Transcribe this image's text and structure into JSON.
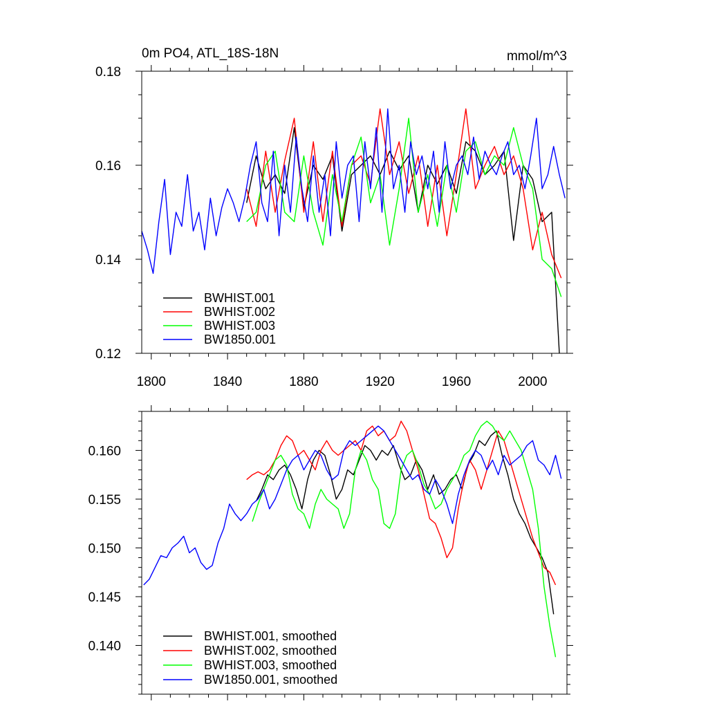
{
  "chart_data": [
    {
      "type": "line",
      "title": "0m PO4, ATL_18S-18N",
      "units": "mmol/m^3",
      "xlim": [
        1795,
        2018
      ],
      "ylim": [
        0.12,
        0.18
      ],
      "x_ticks": [
        1800,
        1840,
        1880,
        1920,
        1960,
        2000
      ],
      "x_tick_labels": [
        "1800",
        "1840",
        "1880",
        "1920",
        "1960",
        "2000"
      ],
      "y_ticks": [
        0.12,
        0.14,
        0.16,
        0.18
      ],
      "y_tick_labels": [
        "0.12",
        "0.14",
        "0.16",
        "0.18"
      ],
      "legend_position": "bottom-left",
      "series": [
        {
          "name": "BWHIST.001",
          "color": "#000000",
          "x": [
            1850,
            1855,
            1860,
            1865,
            1870,
            1875,
            1880,
            1885,
            1890,
            1895,
            1900,
            1905,
            1910,
            1915,
            1920,
            1925,
            1930,
            1935,
            1940,
            1945,
            1950,
            1955,
            1960,
            1965,
            1970,
            1975,
            1980,
            1985,
            1990,
            1995,
            2000,
            2005,
            2010,
            2014
          ],
          "y": [
            0.152,
            0.162,
            0.155,
            0.158,
            0.154,
            0.168,
            0.151,
            0.16,
            0.157,
            0.162,
            0.146,
            0.158,
            0.16,
            0.162,
            0.158,
            0.163,
            0.159,
            0.162,
            0.15,
            0.16,
            0.156,
            0.16,
            0.154,
            0.165,
            0.163,
            0.158,
            0.16,
            0.163,
            0.144,
            0.16,
            0.157,
            0.148,
            0.15,
            0.12
          ]
        },
        {
          "name": "BWHIST.002",
          "color": "#ff0000",
          "x": [
            1850,
            1855,
            1860,
            1865,
            1870,
            1875,
            1880,
            1885,
            1890,
            1895,
            1900,
            1905,
            1910,
            1915,
            1920,
            1925,
            1930,
            1935,
            1940,
            1945,
            1950,
            1955,
            1960,
            1965,
            1970,
            1975,
            1980,
            1985,
            1990,
            1995,
            2000,
            2005,
            2010,
            2015
          ],
          "y": [
            0.155,
            0.147,
            0.163,
            0.15,
            0.161,
            0.17,
            0.15,
            0.165,
            0.148,
            0.163,
            0.147,
            0.16,
            0.162,
            0.156,
            0.172,
            0.158,
            0.165,
            0.154,
            0.162,
            0.147,
            0.16,
            0.145,
            0.158,
            0.172,
            0.155,
            0.16,
            0.164,
            0.158,
            0.162,
            0.155,
            0.142,
            0.15,
            0.141,
            0.136
          ]
        },
        {
          "name": "BWHIST.003",
          "color": "#00ff00",
          "x": [
            1850,
            1855,
            1860,
            1865,
            1870,
            1875,
            1880,
            1885,
            1890,
            1895,
            1900,
            1905,
            1910,
            1915,
            1920,
            1925,
            1930,
            1935,
            1940,
            1945,
            1950,
            1955,
            1960,
            1965,
            1970,
            1975,
            1980,
            1985,
            1990,
            1995,
            2000,
            2005,
            2010,
            2015
          ],
          "y": [
            0.148,
            0.15,
            0.16,
            0.163,
            0.15,
            0.148,
            0.162,
            0.15,
            0.143,
            0.158,
            0.148,
            0.16,
            0.166,
            0.152,
            0.158,
            0.143,
            0.155,
            0.17,
            0.15,
            0.158,
            0.147,
            0.16,
            0.15,
            0.163,
            0.165,
            0.158,
            0.162,
            0.16,
            0.168,
            0.16,
            0.155,
            0.14,
            0.138,
            0.132
          ]
        },
        {
          "name": "BW1850.001",
          "color": "#0000ff",
          "x": [
            1795,
            1798,
            1801,
            1804,
            1807,
            1810,
            1813,
            1816,
            1819,
            1822,
            1825,
            1828,
            1831,
            1834,
            1837,
            1840,
            1843,
            1846,
            1849,
            1852,
            1855,
            1858,
            1861,
            1864,
            1867,
            1870,
            1873,
            1876,
            1879,
            1882,
            1885,
            1888,
            1891,
            1894,
            1897,
            1900,
            1903,
            1906,
            1909,
            1912,
            1915,
            1918,
            1921,
            1924,
            1927,
            1930,
            1933,
            1936,
            1939,
            1942,
            1945,
            1948,
            1951,
            1954,
            1957,
            1960,
            1963,
            1966,
            1969,
            1972,
            1975,
            1978,
            1981,
            1984,
            1987,
            1990,
            1993,
            1996,
            1999,
            2002,
            2005,
            2008,
            2011,
            2014,
            2017
          ],
          "y": [
            0.146,
            0.142,
            0.137,
            0.148,
            0.157,
            0.141,
            0.15,
            0.147,
            0.158,
            0.146,
            0.15,
            0.142,
            0.153,
            0.145,
            0.151,
            0.155,
            0.152,
            0.148,
            0.153,
            0.16,
            0.165,
            0.152,
            0.148,
            0.163,
            0.145,
            0.16,
            0.15,
            0.166,
            0.155,
            0.148,
            0.162,
            0.15,
            0.158,
            0.145,
            0.165,
            0.153,
            0.16,
            0.162,
            0.148,
            0.165,
            0.155,
            0.168,
            0.15,
            0.172,
            0.155,
            0.16,
            0.15,
            0.165,
            0.158,
            0.162,
            0.155,
            0.163,
            0.15,
            0.165,
            0.155,
            0.16,
            0.162,
            0.158,
            0.166,
            0.157,
            0.163,
            0.16,
            0.158,
            0.162,
            0.165,
            0.158,
            0.16,
            0.155,
            0.162,
            0.17,
            0.155,
            0.158,
            0.164,
            0.158,
            0.153
          ]
        }
      ]
    },
    {
      "type": "line",
      "xlim": [
        1795,
        2018
      ],
      "ylim": [
        0.135,
        0.164
      ],
      "x_ticks": [
        1800,
        1840,
        1880,
        1920,
        1960,
        2000
      ],
      "y_ticks": [
        0.14,
        0.145,
        0.15,
        0.155,
        0.16
      ],
      "y_tick_labels": [
        "0.140",
        "0.145",
        "0.150",
        "0.155",
        "0.160"
      ],
      "legend_position": "bottom-left",
      "series": [
        {
          "name": "BWHIST.001, smoothed",
          "color": "#000000",
          "x": [
            1855,
            1858,
            1861,
            1864,
            1867,
            1870,
            1873,
            1876,
            1879,
            1882,
            1885,
            1888,
            1891,
            1894,
            1897,
            1900,
            1903,
            1906,
            1909,
            1912,
            1915,
            1918,
            1921,
            1924,
            1927,
            1930,
            1933,
            1936,
            1939,
            1942,
            1945,
            1948,
            1951,
            1954,
            1957,
            1960,
            1963,
            1966,
            1969,
            1972,
            1975,
            1978,
            1981,
            1984,
            1987,
            1990,
            1993,
            1996,
            1999,
            2002,
            2005,
            2008,
            2011
          ],
          "y": [
            0.1548,
            0.156,
            0.1575,
            0.157,
            0.158,
            0.1585,
            0.1575,
            0.156,
            0.154,
            0.157,
            0.159,
            0.16,
            0.1595,
            0.1575,
            0.155,
            0.156,
            0.158,
            0.1575,
            0.159,
            0.1605,
            0.16,
            0.159,
            0.16,
            0.1595,
            0.1605,
            0.1585,
            0.157,
            0.1575,
            0.159,
            0.158,
            0.156,
            0.1575,
            0.1555,
            0.156,
            0.157,
            0.1575,
            0.156,
            0.1585,
            0.1595,
            0.161,
            0.1605,
            0.1615,
            0.162,
            0.1595,
            0.1575,
            0.155,
            0.1535,
            0.1525,
            0.151,
            0.15,
            0.149,
            0.1475,
            0.1432
          ]
        },
        {
          "name": "BWHIST.002, smoothed",
          "color": "#ff0000",
          "x": [
            1850,
            1853,
            1856,
            1859,
            1862,
            1865,
            1868,
            1871,
            1874,
            1877,
            1880,
            1883,
            1886,
            1889,
            1892,
            1895,
            1898,
            1901,
            1904,
            1907,
            1910,
            1913,
            1916,
            1919,
            1922,
            1925,
            1928,
            1931,
            1934,
            1937,
            1940,
            1943,
            1946,
            1949,
            1952,
            1955,
            1958,
            1961,
            1964,
            1967,
            1970,
            1973,
            1976,
            1979,
            1982,
            1985,
            1988,
            1991,
            1994,
            1997,
            2000,
            2003,
            2006,
            2009,
            2012
          ],
          "y": [
            0.157,
            0.1575,
            0.1578,
            0.1575,
            0.158,
            0.159,
            0.1605,
            0.1615,
            0.161,
            0.1595,
            0.16,
            0.159,
            0.158,
            0.16,
            0.161,
            0.16,
            0.1595,
            0.16,
            0.1605,
            0.161,
            0.16,
            0.162,
            0.1625,
            0.1615,
            0.162,
            0.161,
            0.1615,
            0.163,
            0.162,
            0.16,
            0.158,
            0.1555,
            0.153,
            0.1525,
            0.151,
            0.149,
            0.15,
            0.154,
            0.157,
            0.159,
            0.158,
            0.156,
            0.158,
            0.16,
            0.162,
            0.161,
            0.159,
            0.157,
            0.155,
            0.153,
            0.151,
            0.1495,
            0.148,
            0.1475,
            0.1462
          ]
        },
        {
          "name": "BWHIST.003, smoothed",
          "color": "#00ff00",
          "x": [
            1853,
            1856,
            1859,
            1862,
            1865,
            1868,
            1871,
            1874,
            1877,
            1880,
            1883,
            1886,
            1889,
            1892,
            1895,
            1898,
            1901,
            1904,
            1907,
            1910,
            1913,
            1916,
            1919,
            1922,
            1925,
            1928,
            1931,
            1934,
            1937,
            1940,
            1943,
            1946,
            1949,
            1952,
            1955,
            1958,
            1961,
            1964,
            1967,
            1970,
            1973,
            1976,
            1979,
            1982,
            1985,
            1988,
            1991,
            1994,
            1997,
            2000,
            2003,
            2006,
            2009,
            2012
          ],
          "y": [
            0.1527,
            0.1545,
            0.156,
            0.1575,
            0.159,
            0.1595,
            0.1585,
            0.1555,
            0.154,
            0.1535,
            0.152,
            0.1545,
            0.156,
            0.155,
            0.1545,
            0.154,
            0.152,
            0.1535,
            0.158,
            0.16,
            0.159,
            0.157,
            0.156,
            0.1525,
            0.152,
            0.1535,
            0.158,
            0.1595,
            0.16,
            0.1585,
            0.1565,
            0.1555,
            0.154,
            0.1545,
            0.156,
            0.157,
            0.158,
            0.1595,
            0.16,
            0.1615,
            0.1625,
            0.163,
            0.1625,
            0.1615,
            0.161,
            0.162,
            0.161,
            0.16,
            0.158,
            0.156,
            0.152,
            0.146,
            0.142,
            0.1388
          ]
        },
        {
          "name": "BW1850.001, smoothed",
          "color": "#0000ff",
          "x": [
            1796,
            1799,
            1802,
            1805,
            1808,
            1811,
            1814,
            1817,
            1820,
            1823,
            1826,
            1829,
            1832,
            1835,
            1838,
            1841,
            1844,
            1847,
            1850,
            1853,
            1856,
            1859,
            1862,
            1865,
            1868,
            1871,
            1874,
            1877,
            1880,
            1883,
            1886,
            1889,
            1892,
            1895,
            1898,
            1901,
            1904,
            1907,
            1910,
            1913,
            1916,
            1919,
            1922,
            1925,
            1928,
            1931,
            1934,
            1937,
            1940,
            1943,
            1946,
            1949,
            1952,
            1955,
            1958,
            1961,
            1964,
            1967,
            1970,
            1973,
            1976,
            1979,
            1982,
            1985,
            1988,
            1991,
            1994,
            1997,
            2000,
            2003,
            2006,
            2009,
            2012,
            2015
          ],
          "y": [
            0.1462,
            0.1468,
            0.148,
            0.1492,
            0.149,
            0.15,
            0.1505,
            0.1512,
            0.1495,
            0.15,
            0.1485,
            0.1478,
            0.1482,
            0.1505,
            0.152,
            0.1545,
            0.1535,
            0.1528,
            0.1535,
            0.1545,
            0.155,
            0.156,
            0.154,
            0.155,
            0.1565,
            0.158,
            0.159,
            0.1595,
            0.158,
            0.159,
            0.16,
            0.1595,
            0.158,
            0.157,
            0.1575,
            0.16,
            0.161,
            0.1605,
            0.161,
            0.1615,
            0.162,
            0.1625,
            0.162,
            0.161,
            0.16,
            0.159,
            0.158,
            0.157,
            0.1575,
            0.156,
            0.1555,
            0.157,
            0.156,
            0.1545,
            0.1525,
            0.1555,
            0.1575,
            0.159,
            0.16,
            0.1595,
            0.158,
            0.159,
            0.1575,
            0.1595,
            0.1585,
            0.159,
            0.1595,
            0.1605,
            0.161,
            0.159,
            0.1585,
            0.1575,
            0.1595,
            0.1571
          ]
        }
      ]
    }
  ]
}
